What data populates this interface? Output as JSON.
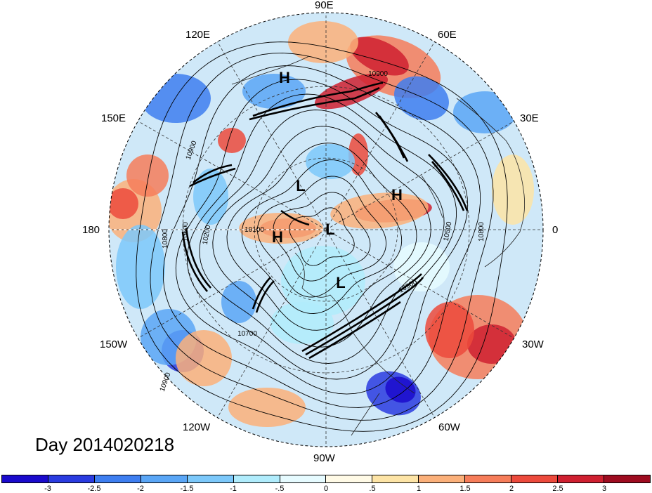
{
  "map": {
    "projection": "north polar stereographic",
    "longitude_labels": [
      "90E",
      "60E",
      "30E",
      "0",
      "30W",
      "60W",
      "90W",
      "120W",
      "150W",
      "180",
      "150E",
      "120E"
    ],
    "pressure_systems": [
      "H",
      "L",
      "H",
      "H",
      "L",
      "L"
    ],
    "contour_labels": [
      "10900",
      "10900",
      "10500",
      "10800",
      "10200",
      "10100",
      "10500",
      "10800",
      "10900",
      "10700",
      "10900"
    ]
  },
  "title": {
    "text": "Day 2014020218"
  },
  "colorbar": {
    "colors": [
      "#1a0acc",
      "#2a3be0",
      "#3e7ef0",
      "#5aa6f6",
      "#7cc8fa",
      "#b0ecfc",
      "#e6fbff",
      "#fffae6",
      "#fde4a6",
      "#fbb07a",
      "#f67d5a",
      "#ec4a3c",
      "#cf2030",
      "#9e0c20"
    ],
    "tick_labels": [
      "-3",
      "-2.5",
      "-2",
      "-1.5",
      "-1",
      "-.5",
      "0",
      ".5",
      "1",
      "1.5",
      "2",
      "2.5",
      "3"
    ]
  }
}
